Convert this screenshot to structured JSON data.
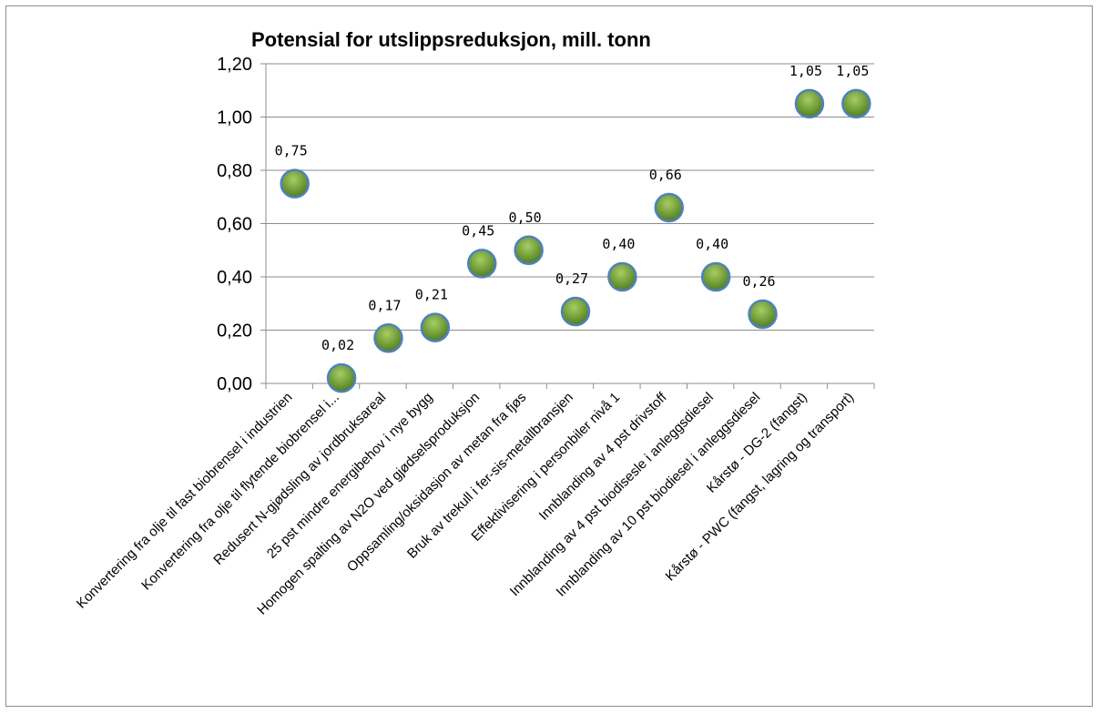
{
  "chart_data": {
    "type": "scatter",
    "title": "Potensial for utslippsreduksjon, mill. tonn",
    "xlabel": "",
    "ylabel": "",
    "ylim": [
      0,
      1.2
    ],
    "yticks": [
      "0,00",
      "0,20",
      "0,40",
      "0,60",
      "0,80",
      "1,00",
      "1,20"
    ],
    "grid": true,
    "categories": [
      "Konvertering fra olje til fast biobrensel i industrien",
      "Konvertering fra olje til flytende biobrensel i...",
      "Redusert N-gjødsling av jordbruksareal",
      "25 pst mindre energibehov i nye bygg",
      "Homogen spalting av N2O ved gjødselsproduksjon",
      "Oppsamling/oksidasjon av metan fra fjøs",
      "Bruk av trekull i fer-sis-metallbransjen",
      "Effektivisering i personbiler nivå 1",
      "Innblanding av 4 pst drivstoff",
      "Innblanding av 4 pst biodisesle i anleggsdiesel",
      "Innblanding av 10 pst biodiesel i anleggsdiesel",
      "Kårstø - DG-2 (fangst)",
      "Kårstø - PWC (fangst, lagring og transport)"
    ],
    "values": [
      0.75,
      0.02,
      0.17,
      0.21,
      0.45,
      0.5,
      0.27,
      0.4,
      0.66,
      0.4,
      0.26,
      1.05,
      1.05
    ],
    "data_labels": [
      "0,75",
      "0,02",
      "0,17",
      "0,21",
      "0,45",
      "0,50",
      "0,27",
      "0,40",
      "0,66",
      "0,40",
      "0,26",
      "1,05",
      "1,05"
    ],
    "colors": {
      "marker_fill": "#5e8a2a",
      "marker_highlight": "#a8cc64",
      "marker_edge": "#4f81bd",
      "gridline": "#8c8c8c"
    }
  }
}
